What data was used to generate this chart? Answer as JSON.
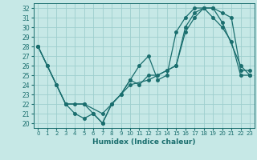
{
  "xlabel": "Humidex (Indice chaleur)",
  "xlim": [
    -0.5,
    23.5
  ],
  "ylim": [
    19.5,
    32.5
  ],
  "yticks": [
    20,
    21,
    22,
    23,
    24,
    25,
    26,
    27,
    28,
    29,
    30,
    31,
    32
  ],
  "xticks": [
    0,
    1,
    2,
    3,
    4,
    5,
    6,
    7,
    8,
    9,
    10,
    11,
    12,
    13,
    14,
    15,
    16,
    17,
    18,
    19,
    20,
    21,
    22,
    23
  ],
  "bg_color": "#c6e8e6",
  "grid_color": "#9ecece",
  "line_color": "#1a6e6e",
  "line1_x": [
    0,
    1,
    2,
    3,
    4,
    5,
    6,
    7,
    8,
    9,
    10,
    11,
    12,
    13,
    14,
    15,
    16,
    17,
    18,
    19,
    20,
    21,
    22,
    23
  ],
  "line1_y": [
    28,
    26,
    24,
    22,
    21,
    20.5,
    21,
    20,
    22,
    23,
    24.5,
    26,
    27,
    24.5,
    25,
    29.5,
    31,
    32,
    32,
    31,
    30,
    28.5,
    25,
    25
  ],
  "line2_x": [
    0,
    1,
    3,
    5,
    7,
    10,
    12,
    14,
    15,
    16,
    17,
    18,
    19,
    20,
    22,
    23
  ],
  "line2_y": [
    28,
    26,
    22,
    22,
    21,
    24,
    24.5,
    25.5,
    26,
    30,
    31.5,
    32,
    32,
    30.5,
    26,
    25
  ],
  "line3_x": [
    0,
    2,
    3,
    4,
    5,
    6,
    7,
    8,
    9,
    10,
    11,
    12,
    13,
    14,
    15,
    16,
    17,
    18,
    19,
    20,
    21,
    22,
    23
  ],
  "line3_y": [
    28,
    24,
    22,
    22,
    22,
    21,
    20,
    22,
    23,
    24.5,
    24,
    25,
    25,
    25.5,
    26,
    29.5,
    31,
    32,
    32,
    31.5,
    31,
    25.5,
    25.5
  ]
}
